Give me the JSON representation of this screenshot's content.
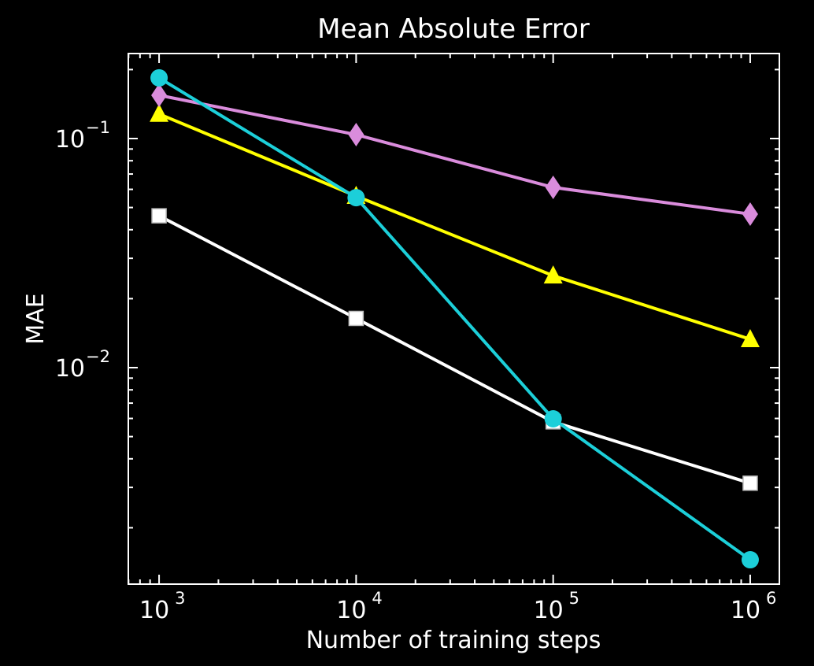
{
  "chart_data": {
    "type": "line",
    "title": "Mean Absolute Error",
    "xlabel": "Number of training steps",
    "ylabel": "MAE",
    "xscale": "log",
    "yscale": "log",
    "xlim": [
      698,
      1406000
    ],
    "ylim": [
      0.001135,
      0.235
    ],
    "x": [
      1000,
      10000,
      100000,
      1000000
    ],
    "x_tick_labels": [
      {
        "base": "10",
        "exp": "3",
        "value": 1000
      },
      {
        "base": "10",
        "exp": "4",
        "value": 10000
      },
      {
        "base": "10",
        "exp": "5",
        "value": 100000
      },
      {
        "base": "10",
        "exp": "6",
        "value": 1000000
      }
    ],
    "y_tick_labels": [
      {
        "base": "10",
        "exp": "−1",
        "value": 0.1
      },
      {
        "base": "10",
        "exp": "−2",
        "value": 0.01
      }
    ],
    "grid": false,
    "legend": "none",
    "series": [
      {
        "name": "white-squares",
        "color": "#ffffff",
        "marker": "square",
        "values": [
          0.046,
          0.0164,
          0.0058,
          0.00313
        ]
      },
      {
        "name": "yellow-triangles",
        "color": "#ffff00",
        "marker": "triangle",
        "values": [
          0.128,
          0.0561,
          0.0252,
          0.0133
        ]
      },
      {
        "name": "violet-diamonds",
        "color": "#da8cdc",
        "marker": "diamond",
        "values": [
          0.1545,
          0.104,
          0.0612,
          0.0468
        ]
      },
      {
        "name": "cyan-circles",
        "color": "#1ccfd9",
        "marker": "circle",
        "values": [
          0.184,
          0.0552,
          0.00598,
          0.00145
        ]
      }
    ]
  }
}
